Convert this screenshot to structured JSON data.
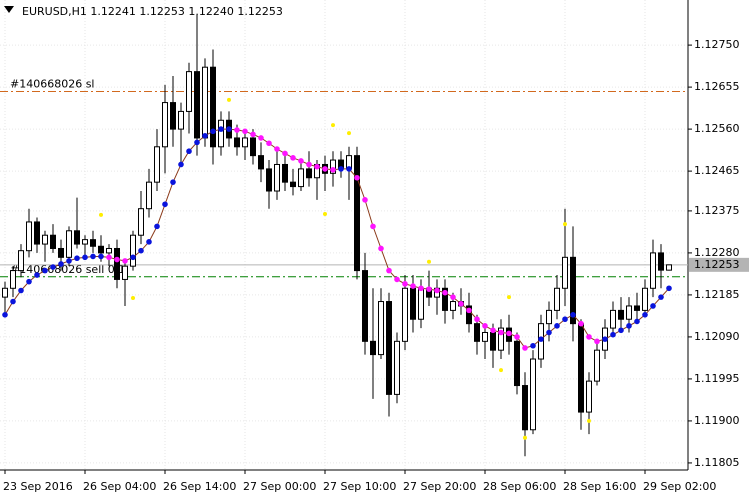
{
  "chart_data": {
    "type": "candlestick",
    "title": "EURUSD,H1  1.12241 1.12253 1.12240 1.12253",
    "categories": [
      "23 Sep 2016",
      null,
      null,
      null,
      null,
      null,
      null,
      null,
      null,
      null,
      "26 Sep 04:00",
      null,
      null,
      null,
      null,
      null,
      null,
      null,
      null,
      null,
      "26 Sep 14:00",
      null,
      null,
      null,
      null,
      null,
      null,
      null,
      null,
      null,
      "27 Sep 00:00",
      null,
      null,
      null,
      null,
      null,
      null,
      null,
      null,
      null,
      "27 Sep 10:00",
      null,
      null,
      null,
      null,
      null,
      null,
      null,
      null,
      null,
      "27 Sep 20:00",
      null,
      null,
      null,
      null,
      null,
      null,
      null,
      null,
      null,
      "28 Sep 06:00",
      null,
      null,
      null,
      null,
      null,
      null,
      null,
      null,
      null,
      "28 Sep 16:00",
      null,
      null,
      null,
      null,
      null,
      null,
      null,
      null,
      null,
      "29 Sep 02:00",
      null,
      null,
      null
    ],
    "open": [
      1.1218,
      1.122,
      1.1224,
      1.12285,
      1.1235,
      1.123,
      1.1232,
      1.1229,
      1.1227,
      1.1233,
      1.123,
      1.1231,
      1.12295,
      1.1228,
      1.1229,
      1.1222,
      1.1225,
      1.1232,
      1.1238,
      1.1244,
      1.1252,
      1.1262,
      1.1256,
      1.126,
      1.1269,
      1.1254,
      1.127,
      1.1252,
      1.1258,
      1.1254,
      1.1252,
      1.1254,
      1.125,
      1.1247,
      1.1242,
      1.1248,
      1.1244,
      1.1243,
      1.1247,
      1.1245,
      1.1248,
      1.1246,
      1.1249,
      1.1247,
      1.125,
      1.1224,
      1.1208,
      1.1205,
      1.1217,
      1.1196,
      1.1208,
      1.122,
      1.1213,
      1.122,
      1.1218,
      1.122,
      1.1215,
      1.1217,
      1.1216,
      1.1212,
      1.1208,
      1.121,
      1.1206,
      1.1211,
      1.1208,
      1.1198,
      1.1188,
      1.1204,
      1.1212,
      1.1215,
      1.122,
      1.1227,
      1.1212,
      1.1192,
      1.1199,
      1.1206,
      1.1211,
      1.1215,
      1.1213,
      1.1216,
      1.1215,
      1.122,
      1.1228,
      1.12241
    ],
    "high": [
      1.12215,
      1.1225,
      1.123,
      1.1238,
      1.1236,
      1.1233,
      1.12345,
      1.1231,
      1.1234,
      1.12405,
      1.1232,
      1.1233,
      1.1232,
      1.123,
      1.1231,
      1.1226,
      1.1233,
      1.1242,
      1.1247,
      1.1256,
      1.1266,
      1.1268,
      1.1262,
      1.1271,
      1.1282,
      1.1272,
      1.1274,
      1.126,
      1.126,
      1.1257,
      1.1256,
      1.1256,
      1.1253,
      1.1249,
      1.1251,
      1.125,
      1.1247,
      1.1249,
      1.1251,
      1.1249,
      1.125,
      1.1251,
      1.1251,
      1.1252,
      1.1252,
      1.1228,
      1.122,
      1.122,
      1.1219,
      1.121,
      1.1223,
      1.1223,
      1.1222,
      1.1224,
      1.1222,
      1.1222,
      1.1219,
      1.122,
      1.1219,
      1.1214,
      1.1212,
      1.1212,
      1.1213,
      1.1214,
      1.121,
      1.1201,
      1.1206,
      1.1214,
      1.1217,
      1.1223,
      1.1238,
      1.1234,
      1.1213,
      1.1201,
      1.1208,
      1.1213,
      1.1217,
      1.1218,
      1.1218,
      1.1219,
      1.1222,
      1.1231,
      1.123,
      1.12253
    ],
    "low": [
      1.1214,
      1.1218,
      1.12225,
      1.1227,
      1.1228,
      1.1226,
      1.1228,
      1.1224,
      1.1225,
      1.1229,
      1.1227,
      1.1228,
      1.1226,
      1.1225,
      1.122,
      1.1216,
      1.1224,
      1.123,
      1.1236,
      1.1242,
      1.1246,
      1.1252,
      1.1248,
      1.1255,
      1.125,
      1.1252,
      1.1248,
      1.125,
      1.1252,
      1.125,
      1.1249,
      1.1248,
      1.1244,
      1.1238,
      1.124,
      1.1242,
      1.1241,
      1.1242,
      1.1243,
      1.124,
      1.1242,
      1.1243,
      1.1245,
      1.124,
      1.1222,
      1.1205,
      1.1195,
      1.1204,
      1.1191,
      1.1194,
      1.1206,
      1.121,
      1.1211,
      1.1216,
      1.1214,
      1.1212,
      1.1213,
      1.1214,
      1.121,
      1.1205,
      1.1204,
      1.1202,
      1.1204,
      1.1205,
      1.1196,
      1.1182,
      1.1187,
      1.1202,
      1.1208,
      1.1213,
      1.1216,
      1.1208,
      1.1188,
      1.1187,
      1.1198,
      1.1204,
      1.1209,
      1.1211,
      1.121,
      1.1212,
      1.1214,
      1.1218,
      1.122,
      1.1224
    ],
    "close": [
      1.122,
      1.1224,
      1.12285,
      1.1235,
      1.123,
      1.1232,
      1.1229,
      1.1227,
      1.1233,
      1.123,
      1.1231,
      1.12295,
      1.1228,
      1.1229,
      1.1222,
      1.1225,
      1.1232,
      1.1238,
      1.1244,
      1.1252,
      1.1262,
      1.1256,
      1.126,
      1.1269,
      1.1254,
      1.127,
      1.1252,
      1.1258,
      1.1254,
      1.1252,
      1.1254,
      1.125,
      1.1247,
      1.1242,
      1.1248,
      1.1244,
      1.1243,
      1.1247,
      1.1245,
      1.1248,
      1.1246,
      1.1249,
      1.1247,
      1.125,
      1.1224,
      1.1208,
      1.1205,
      1.1217,
      1.1196,
      1.1208,
      1.122,
      1.1213,
      1.122,
      1.1218,
      1.122,
      1.1215,
      1.1217,
      1.1216,
      1.1212,
      1.1208,
      1.121,
      1.1206,
      1.1211,
      1.1208,
      1.1198,
      1.1188,
      1.1204,
      1.1212,
      1.1215,
      1.122,
      1.1227,
      1.1212,
      1.1192,
      1.1199,
      1.1206,
      1.1211,
      1.1215,
      1.1213,
      1.1216,
      1.1215,
      1.122,
      1.1228,
      1.12241,
      1.12253
    ],
    "ma": [
      1.1214,
      1.1217,
      1.12195,
      1.12215,
      1.1223,
      1.1224,
      1.12248,
      1.12255,
      1.12262,
      1.12268,
      1.1227,
      1.12272,
      1.12272,
      1.1227,
      1.12265,
      1.12262,
      1.1227,
      1.12285,
      1.12305,
      1.1234,
      1.1239,
      1.1244,
      1.1248,
      1.1251,
      1.1253,
      1.12545,
      1.12555,
      1.1256,
      1.1256,
      1.12558,
      1.12555,
      1.12548,
      1.1254,
      1.12528,
      1.12515,
      1.12505,
      1.12495,
      1.12488,
      1.1248,
      1.12475,
      1.1247,
      1.12468,
      1.1247,
      1.1247,
      1.1245,
      1.124,
      1.1234,
      1.1229,
      1.1224,
      1.1222,
      1.1221,
      1.12205,
      1.122,
      1.12198,
      1.12195,
      1.1219,
      1.1218,
      1.12165,
      1.1215,
      1.1213,
      1.12115,
      1.12105,
      1.121,
      1.12098,
      1.1209,
      1.12065,
      1.1207,
      1.12085,
      1.121,
      1.12115,
      1.1213,
      1.1214,
      1.1212,
      1.1209,
      1.1208,
      1.12085,
      1.12095,
      1.12105,
      1.12115,
      1.12125,
      1.1214,
      1.1216,
      1.1218,
      1.122
    ],
    "ma_up_color": "#0a14dc",
    "ma_down_color": "#ff14ff",
    "ma_line_color": "#8b3a1a",
    "signal_dots": {
      "index": [
        12,
        16,
        28,
        40,
        41,
        43,
        53,
        62,
        63,
        65,
        70,
        73
      ],
      "values": [
        1.12366,
        1.12178,
        1.12626,
        1.12368,
        1.12569,
        1.12551,
        1.1226,
        1.12015,
        1.1218,
        1.11862,
        1.12345,
        1.119
      ],
      "color": "#ffee00"
    },
    "levels": [
      {
        "label": "#140668026 sl",
        "value": 1.12645,
        "color": "#d2691e"
      },
      {
        "label": "#140668026 sell 0.1",
        "value": 1.12226,
        "color": "#008000"
      }
    ],
    "bid": 1.12253,
    "ylim": [
      1.11789,
      1.12852
    ],
    "yticks": [
      {
        "value": 1.1275,
        "label": "1.12750"
      },
      1.12655,
      {
        "value": 1.1256,
        "label": "1.12560"
      },
      1.12465,
      1.12375,
      {
        "value": 1.1228,
        "label": "1.12280"
      },
      1.12185,
      {
        "value": 1.1209,
        "label": "1.12090"
      },
      1.11995,
      {
        "value": 1.119,
        "label": "1.11900"
      },
      1.11805
    ],
    "grid": true
  }
}
